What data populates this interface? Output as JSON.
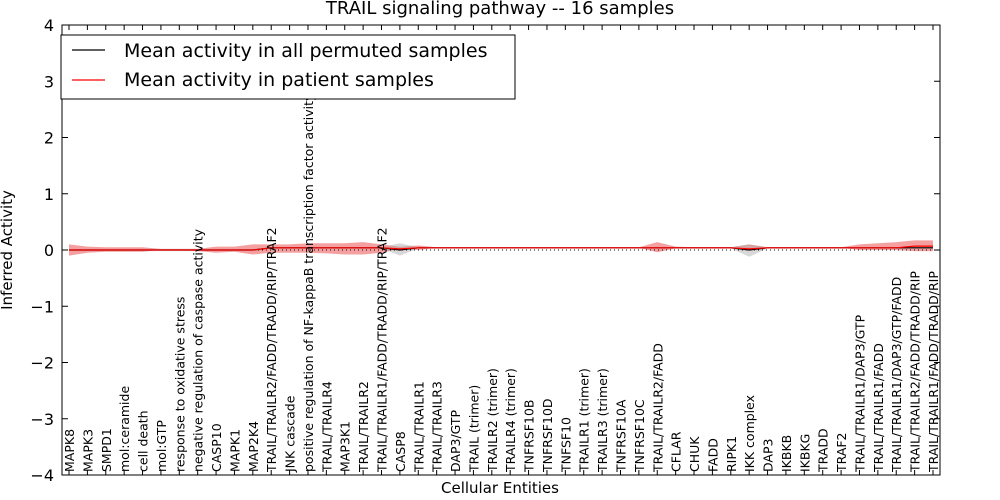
{
  "chart_data": {
    "type": "line",
    "title": "TRAIL signaling pathway -- 16 samples",
    "xlabel": "Cellular Entities",
    "ylabel": "Inferred Activity",
    "ylim": [
      -4,
      4
    ],
    "yticks": [
      -4,
      -3,
      -2,
      -1,
      0,
      1,
      2,
      3,
      4
    ],
    "grid": false,
    "legend_position": "top-left",
    "categories": [
      "MAPK8",
      "MAPK3",
      "SMPD1",
      "mol:ceramide",
      "cell death",
      "mol:GTP",
      "response to oxidative stress",
      "negative regulation of caspase activity",
      "CASP10",
      "MAPK1",
      "MAP2K4",
      "TRAIL/TRAILR2/FADD/TRADD/RIP/TRAF2",
      "JNK cascade",
      "positive regulation of NF-kappaB transcription factor activity",
      "TRAIL/TRAILR4",
      "MAP3K1",
      "TRAIL/TRAILR2",
      "TRAIL/TRAILR1/FADD/TRADD/RIP/TRAF2",
      "CASP8",
      "TRAIL/TRAILR1",
      "TRAIL/TRAILR3",
      "DAP3/GTP",
      "TRAIL (trimer)",
      "TRAILR2 (trimer)",
      "TRAILR4 (trimer)",
      "TNFRSF10B",
      "TNFRSF10D",
      "TNFSF10",
      "TRAILR1 (trimer)",
      "TRAILR3 (trimer)",
      "TNFRSF10A",
      "TNFRSF10C",
      "TRAIL/TRAILR2/FADD",
      "CFLAR",
      "CHUK",
      "FADD",
      "RIPK1",
      "IKK complex",
      "DAP3",
      "IKBKB",
      "IKBKG",
      "TRADD",
      "TRAF2",
      "TRAIL/TRAILR1/DAP3/GTP",
      "TRAIL/TRAILR1/FADD",
      "TRAIL/TRAILR1/DAP3/GTP/FADD",
      "TRAIL/TRAILR2/FADD/TRADD/RIP",
      "TRAIL/TRAILR1/FADD/TRADD/RIP"
    ],
    "series": [
      {
        "name": "Mean activity in all permuted samples",
        "color": "#000000",
        "values": [
          0.0,
          0.0,
          0.0,
          0.0,
          0.0,
          0.0,
          0.0,
          0.0,
          0.0,
          0.0,
          0.0,
          0.04,
          0.04,
          0.04,
          0.04,
          0.04,
          0.04,
          0.04,
          0.0,
          0.04,
          0.04,
          0.04,
          0.04,
          0.04,
          0.04,
          0.04,
          0.04,
          0.04,
          0.04,
          0.04,
          0.04,
          0.04,
          0.04,
          0.04,
          0.04,
          0.04,
          0.04,
          0.0,
          0.04,
          0.04,
          0.04,
          0.04,
          0.04,
          0.04,
          0.04,
          0.04,
          0.04,
          0.04
        ],
        "band": {
          "color": "#a9a9a9",
          "lower": [
            -0.02,
            -0.02,
            -0.02,
            -0.02,
            -0.02,
            -0.02,
            -0.02,
            -0.02,
            -0.02,
            -0.02,
            -0.02,
            0.03,
            0.03,
            0.03,
            0.03,
            0.03,
            0.03,
            0.03,
            -0.1,
            0.03,
            0.03,
            0.03,
            0.03,
            0.03,
            0.03,
            0.03,
            0.03,
            0.03,
            0.03,
            0.03,
            0.03,
            0.03,
            0.03,
            0.03,
            0.03,
            0.03,
            0.03,
            -0.12,
            0.03,
            0.03,
            0.03,
            0.03,
            0.03,
            0.03,
            0.03,
            0.03,
            0.03,
            0.03
          ],
          "upper": [
            0.02,
            0.02,
            0.02,
            0.02,
            0.02,
            0.02,
            0.02,
            0.02,
            0.02,
            0.02,
            0.02,
            0.05,
            0.05,
            0.05,
            0.05,
            0.05,
            0.05,
            0.05,
            0.12,
            0.05,
            0.05,
            0.05,
            0.05,
            0.05,
            0.05,
            0.05,
            0.05,
            0.05,
            0.05,
            0.05,
            0.05,
            0.05,
            0.05,
            0.05,
            0.05,
            0.05,
            0.05,
            0.1,
            0.05,
            0.05,
            0.05,
            0.05,
            0.05,
            0.05,
            0.05,
            0.05,
            0.05,
            0.05
          ]
        }
      },
      {
        "name": "Mean activity in patient samples",
        "color": "#ff0000",
        "values": [
          0.0,
          0.0,
          0.0,
          0.0,
          0.0,
          0.0,
          0.0,
          0.0,
          0.0,
          0.0,
          0.0,
          0.04,
          0.04,
          0.04,
          0.04,
          0.04,
          0.04,
          0.04,
          0.02,
          0.04,
          0.04,
          0.04,
          0.04,
          0.04,
          0.04,
          0.04,
          0.04,
          0.04,
          0.04,
          0.04,
          0.04,
          0.04,
          0.04,
          0.04,
          0.04,
          0.04,
          0.04,
          0.02,
          0.04,
          0.04,
          0.04,
          0.04,
          0.04,
          0.04,
          0.04,
          0.04,
          0.07,
          0.07
        ],
        "band": {
          "color": "#f08080",
          "lower": [
            -0.1,
            -0.05,
            -0.03,
            -0.03,
            -0.03,
            0.0,
            0.0,
            -0.02,
            -0.05,
            -0.03,
            -0.08,
            -0.05,
            -0.05,
            -0.05,
            -0.06,
            -0.08,
            -0.08,
            -0.05,
            0.02,
            0.0,
            0.04,
            0.04,
            0.04,
            0.04,
            0.04,
            0.04,
            0.04,
            0.04,
            0.04,
            0.04,
            0.04,
            0.04,
            -0.04,
            0.03,
            0.04,
            0.04,
            0.04,
            0.0,
            0.04,
            0.04,
            0.04,
            0.04,
            0.04,
            0.0,
            0.0,
            0.0,
            -0.02,
            -0.02
          ],
          "upper": [
            0.1,
            0.06,
            0.05,
            0.05,
            0.05,
            0.02,
            0.02,
            0.02,
            0.06,
            0.06,
            0.1,
            0.1,
            0.1,
            0.12,
            0.12,
            0.12,
            0.14,
            0.1,
            0.06,
            0.08,
            0.05,
            0.05,
            0.05,
            0.05,
            0.05,
            0.05,
            0.05,
            0.05,
            0.05,
            0.05,
            0.05,
            0.05,
            0.14,
            0.06,
            0.05,
            0.05,
            0.05,
            0.1,
            0.05,
            0.05,
            0.05,
            0.05,
            0.05,
            0.1,
            0.12,
            0.14,
            0.17,
            0.17
          ]
        }
      }
    ]
  }
}
